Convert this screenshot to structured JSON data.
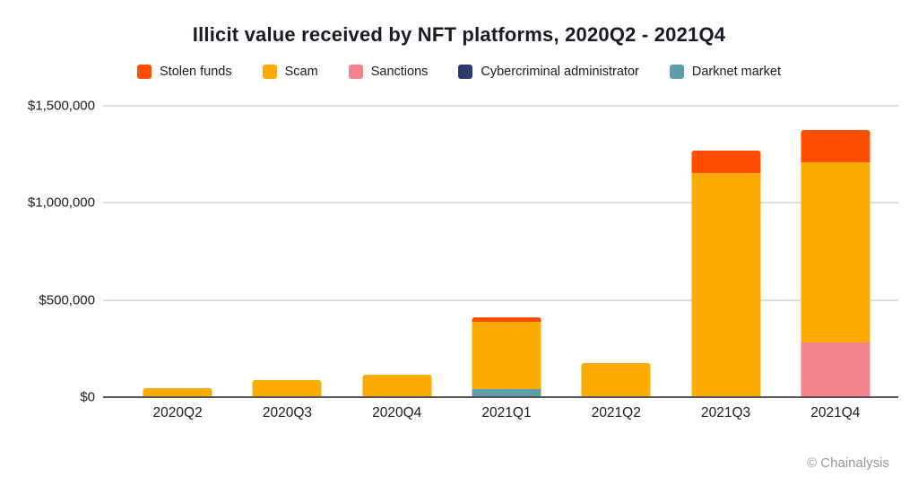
{
  "title": "Illicit value received by NFT platforms, 2020Q2 - 2021Q4",
  "footer": {
    "credit": "© Chainalysis"
  },
  "chart_data": {
    "type": "bar",
    "stacked": true,
    "title": "Illicit value received by NFT platforms, 2020Q2 - 2021Q4",
    "xlabel": "",
    "ylabel": "",
    "categories": [
      "2020Q2",
      "2020Q3",
      "2020Q4",
      "2021Q1",
      "2021Q2",
      "2021Q3",
      "2021Q4"
    ],
    "series": [
      {
        "name": "Stolen funds",
        "color": "#FF4E00",
        "values": [
          0,
          0,
          0,
          20000,
          0,
          115000,
          165000
        ]
      },
      {
        "name": "Scam",
        "color": "#FCAC00",
        "values": [
          45000,
          90000,
          115000,
          350000,
          175000,
          1155000,
          930000
        ]
      },
      {
        "name": "Sanctions",
        "color": "#F2838C",
        "values": [
          0,
          0,
          0,
          0,
          0,
          0,
          280000
        ]
      },
      {
        "name": "Cybercriminal administrator",
        "color": "#2C3B70",
        "values": [
          0,
          0,
          0,
          0,
          0,
          0,
          0
        ]
      },
      {
        "name": "Darknet market",
        "color": "#5C9DA8",
        "values": [
          0,
          0,
          0,
          40000,
          0,
          0,
          0
        ]
      }
    ],
    "stack_order_bottom_to_top": [
      "Darknet market",
      "Cybercriminal administrator",
      "Sanctions",
      "Scam",
      "Stolen funds"
    ],
    "ylim": [
      0,
      1500000
    ],
    "yticks": [
      {
        "value": 0,
        "label": "$0"
      },
      {
        "value": 500000,
        "label": "$500,000"
      },
      {
        "value": 1000000,
        "label": "$1,000,000"
      },
      {
        "value": 1500000,
        "label": "$1,500,000"
      }
    ],
    "grid": true,
    "legend_position": "top",
    "colors": {
      "grid": "#DDDDDD",
      "axis": "#555555",
      "text": "#1A1A24",
      "muted": "#999999",
      "background": "#FFFFFF"
    }
  }
}
